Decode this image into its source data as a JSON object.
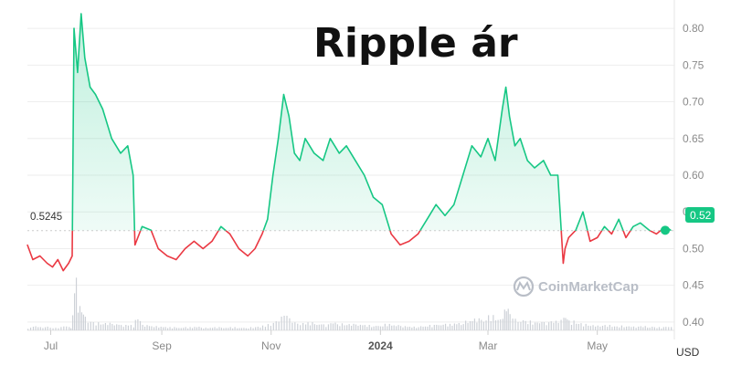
{
  "title": "Ripple ár",
  "unit": "USD",
  "watermark": "CoinMarketCap",
  "open_price_label": "0.5245",
  "current_price_label": "0.52",
  "colors": {
    "up": "#16c784",
    "down": "#ea3943",
    "up_fill": "#16c784",
    "grid": "#eeeeee",
    "reference": "#cccccc",
    "volume": "#cdd1d7"
  },
  "chart_data": {
    "type": "line",
    "title": "Ripple ár",
    "xlabel": "",
    "ylabel": "USD",
    "reference_value": 0.5245,
    "ylim": [
      0.38,
      0.82
    ],
    "yticks": [
      0.4,
      0.45,
      0.5,
      0.55,
      0.6,
      0.65,
      0.7,
      0.75,
      0.8
    ],
    "xticks": [
      "Jul",
      "Sep",
      "Nov",
      "2024",
      "Mar",
      "May"
    ],
    "xtick_dates": [
      "2023-07-01",
      "2023-09-01",
      "2023-11-01",
      "2024-01-01",
      "2024-03-01",
      "2024-05-01"
    ],
    "grid": true,
    "series": [
      {
        "x": [
          "2023-06-18",
          "2023-06-21",
          "2023-06-25",
          "2023-06-29",
          "2023-07-02",
          "2023-07-05",
          "2023-07-08",
          "2023-07-11",
          "2023-07-13",
          "2023-07-14",
          "2023-07-16",
          "2023-07-18",
          "2023-07-20",
          "2023-07-23",
          "2023-07-26",
          "2023-07-30",
          "2023-08-04",
          "2023-08-09",
          "2023-08-13",
          "2023-08-16",
          "2023-08-17",
          "2023-08-21",
          "2023-08-26",
          "2023-08-30",
          "2023-09-04",
          "2023-09-09",
          "2023-09-14",
          "2023-09-19",
          "2023-09-24",
          "2023-09-29",
          "2023-10-04",
          "2023-10-09",
          "2023-10-14",
          "2023-10-19",
          "2023-10-23",
          "2023-10-27",
          "2023-10-30",
          "2023-11-02",
          "2023-11-05",
          "2023-11-08",
          "2023-11-11",
          "2023-11-14",
          "2023-11-17",
          "2023-11-20",
          "2023-11-25",
          "2023-11-30",
          "2023-12-04",
          "2023-12-09",
          "2023-12-13",
          "2023-12-18",
          "2023-12-23",
          "2023-12-28",
          "2024-01-02",
          "2024-01-07",
          "2024-01-12",
          "2024-01-17",
          "2024-01-22",
          "2024-01-27",
          "2024-02-01",
          "2024-02-06",
          "2024-02-11",
          "2024-02-16",
          "2024-02-21",
          "2024-02-26",
          "2024-03-01",
          "2024-03-05",
          "2024-03-09",
          "2024-03-11",
          "2024-03-13",
          "2024-03-16",
          "2024-03-19",
          "2024-03-23",
          "2024-03-27",
          "2024-04-01",
          "2024-04-05",
          "2024-04-09",
          "2024-04-12",
          "2024-04-13",
          "2024-04-15",
          "2024-04-19",
          "2024-04-23",
          "2024-04-27",
          "2024-05-01",
          "2024-05-05",
          "2024-05-09",
          "2024-05-13",
          "2024-05-17",
          "2024-05-21",
          "2024-05-25",
          "2024-05-30",
          "2024-06-03",
          "2024-06-08",
          "2024-06-11"
        ],
        "values": [
          0.505,
          0.485,
          0.49,
          0.48,
          0.475,
          0.485,
          0.47,
          0.48,
          0.49,
          0.8,
          0.74,
          0.82,
          0.76,
          0.72,
          0.71,
          0.69,
          0.65,
          0.63,
          0.64,
          0.6,
          0.505,
          0.53,
          0.525,
          0.5,
          0.49,
          0.485,
          0.5,
          0.51,
          0.5,
          0.51,
          0.53,
          0.52,
          0.5,
          0.49,
          0.5,
          0.52,
          0.54,
          0.6,
          0.65,
          0.71,
          0.68,
          0.63,
          0.62,
          0.65,
          0.63,
          0.62,
          0.65,
          0.63,
          0.64,
          0.62,
          0.6,
          0.57,
          0.56,
          0.52,
          0.505,
          0.51,
          0.52,
          0.54,
          0.56,
          0.545,
          0.56,
          0.6,
          0.64,
          0.625,
          0.65,
          0.62,
          0.69,
          0.72,
          0.68,
          0.64,
          0.65,
          0.62,
          0.61,
          0.62,
          0.6,
          0.6,
          0.48,
          0.5,
          0.515,
          0.525,
          0.55,
          0.51,
          0.515,
          0.53,
          0.52,
          0.54,
          0.515,
          0.53,
          0.535,
          0.525,
          0.52,
          0.53,
          0.525
        ]
      }
    ],
    "volume_relative": [
      0.05,
      0.08,
      0.06,
      0.07,
      0.05,
      0.06,
      0.08,
      0.06,
      0.3,
      1.0,
      0.45,
      0.35,
      0.25,
      0.18,
      0.15,
      0.14,
      0.12,
      0.1,
      0.11,
      0.09,
      0.22,
      0.1,
      0.08,
      0.07,
      0.06,
      0.05,
      0.06,
      0.07,
      0.05,
      0.06,
      0.05,
      0.06,
      0.05,
      0.06,
      0.07,
      0.09,
      0.12,
      0.18,
      0.25,
      0.3,
      0.22,
      0.16,
      0.14,
      0.15,
      0.12,
      0.11,
      0.15,
      0.13,
      0.12,
      0.11,
      0.1,
      0.09,
      0.12,
      0.1,
      0.08,
      0.07,
      0.08,
      0.1,
      0.11,
      0.12,
      0.14,
      0.18,
      0.22,
      0.2,
      0.28,
      0.22,
      0.38,
      0.42,
      0.3,
      0.22,
      0.2,
      0.18,
      0.16,
      0.15,
      0.18,
      0.2,
      0.32,
      0.24,
      0.18,
      0.14,
      0.12,
      0.1,
      0.09,
      0.1,
      0.08,
      0.09,
      0.08,
      0.07,
      0.08,
      0.07,
      0.06,
      0.07,
      0.06
    ]
  }
}
